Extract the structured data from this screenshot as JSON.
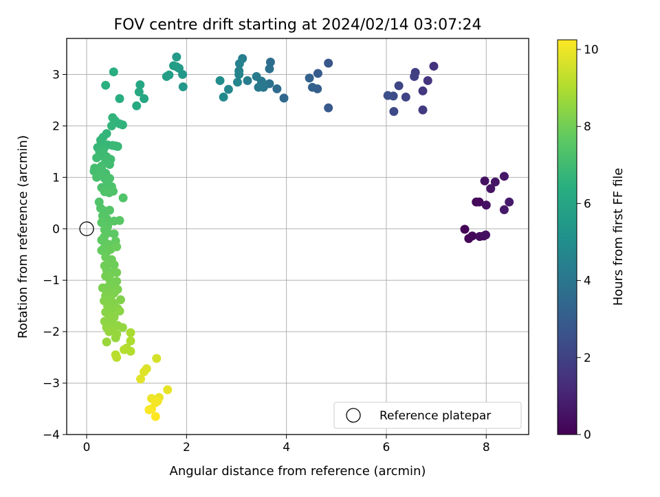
{
  "chart_data": {
    "type": "scatter",
    "title": "FOV centre drift starting at 2024/02/14 03:07:24",
    "xlabel": "Angular distance from reference (arcmin)",
    "ylabel": "Rotation from reference (arcmin)",
    "xlim": [
      -0.4,
      8.85
    ],
    "ylim": [
      -4.0,
      3.7
    ],
    "xticks": [
      0,
      2,
      4,
      6,
      8
    ],
    "yticks": [
      -4,
      -3,
      -2,
      -1,
      0,
      1,
      2,
      3
    ],
    "grid": true,
    "colormap": "viridis",
    "colorbar": {
      "label": "Hours from first FF file",
      "min": 0,
      "max": 10.25,
      "ticks": [
        0,
        2,
        4,
        6,
        8,
        10
      ]
    },
    "legend": {
      "position": "lower-right",
      "entries": [
        "Reference platepar"
      ]
    },
    "reference_point": {
      "x": 0,
      "y": 0
    },
    "points": [
      {
        "x": 7.57,
        "y": -0.01,
        "t": 0.05
      },
      {
        "x": 7.65,
        "y": -0.19,
        "t": 0.1
      },
      {
        "x": 7.72,
        "y": -0.14,
        "t": 0.15
      },
      {
        "x": 7.8,
        "y": 0.52,
        "t": 0.2
      },
      {
        "x": 7.86,
        "y": 0.52,
        "t": 0.25
      },
      {
        "x": 7.87,
        "y": -0.15,
        "t": 0.3
      },
      {
        "x": 7.95,
        "y": -0.14,
        "t": 0.35
      },
      {
        "x": 7.99,
        "y": -0.12,
        "t": 0.4
      },
      {
        "x": 8.0,
        "y": 0.46,
        "t": 0.45
      },
      {
        "x": 7.97,
        "y": 0.93,
        "t": 0.5
      },
      {
        "x": 8.09,
        "y": 0.78,
        "t": 0.55
      },
      {
        "x": 8.18,
        "y": 0.91,
        "t": 0.6
      },
      {
        "x": 8.36,
        "y": 1.02,
        "t": 0.65
      },
      {
        "x": 8.36,
        "y": 0.37,
        "t": 0.7
      },
      {
        "x": 8.46,
        "y": 0.52,
        "t": 0.75
      },
      {
        "x": 6.95,
        "y": 3.16,
        "t": 1.45
      },
      {
        "x": 6.83,
        "y": 2.88,
        "t": 1.55
      },
      {
        "x": 6.73,
        "y": 2.68,
        "t": 1.65
      },
      {
        "x": 6.73,
        "y": 2.31,
        "t": 1.75
      },
      {
        "x": 6.58,
        "y": 3.04,
        "t": 1.85
      },
      {
        "x": 6.56,
        "y": 2.96,
        "t": 1.95
      },
      {
        "x": 6.39,
        "y": 2.56,
        "t": 2.05
      },
      {
        "x": 6.25,
        "y": 2.78,
        "t": 2.15
      },
      {
        "x": 6.15,
        "y": 2.28,
        "t": 2.25
      },
      {
        "x": 6.14,
        "y": 2.58,
        "t": 2.35
      },
      {
        "x": 6.03,
        "y": 2.59,
        "t": 2.45
      },
      {
        "x": 4.84,
        "y": 3.22,
        "t": 2.75
      },
      {
        "x": 4.84,
        "y": 2.35,
        "t": 2.85
      },
      {
        "x": 4.63,
        "y": 3.02,
        "t": 2.95
      },
      {
        "x": 4.62,
        "y": 2.72,
        "t": 3.05
      },
      {
        "x": 4.52,
        "y": 2.75,
        "t": 3.15
      },
      {
        "x": 4.46,
        "y": 2.93,
        "t": 3.25
      },
      {
        "x": 3.95,
        "y": 2.54,
        "t": 3.45
      },
      {
        "x": 3.81,
        "y": 2.72,
        "t": 3.55
      },
      {
        "x": 3.68,
        "y": 3.24,
        "t": 3.65
      },
      {
        "x": 3.66,
        "y": 3.11,
        "t": 3.75
      },
      {
        "x": 3.66,
        "y": 2.82,
        "t": 3.85
      },
      {
        "x": 3.55,
        "y": 2.81,
        "t": 3.95
      },
      {
        "x": 3.54,
        "y": 2.75,
        "t": 4.05
      },
      {
        "x": 3.5,
        "y": 2.87,
        "t": 4.1
      },
      {
        "x": 3.44,
        "y": 2.75,
        "t": 4.15
      },
      {
        "x": 3.4,
        "y": 2.96,
        "t": 4.2
      },
      {
        "x": 3.22,
        "y": 2.88,
        "t": 4.3
      },
      {
        "x": 3.12,
        "y": 3.31,
        "t": 4.4
      },
      {
        "x": 3.06,
        "y": 3.21,
        "t": 4.5
      },
      {
        "x": 3.05,
        "y": 3.07,
        "t": 4.55
      },
      {
        "x": 3.05,
        "y": 3.0,
        "t": 4.6
      },
      {
        "x": 3.02,
        "y": 2.85,
        "t": 4.65
      },
      {
        "x": 2.84,
        "y": 2.71,
        "t": 4.75
      },
      {
        "x": 2.74,
        "y": 2.56,
        "t": 4.85
      },
      {
        "x": 2.67,
        "y": 2.88,
        "t": 4.95
      },
      {
        "x": 1.92,
        "y": 3.0,
        "t": 5.4
      },
      {
        "x": 1.93,
        "y": 2.76,
        "t": 5.45
      },
      {
        "x": 1.85,
        "y": 3.12,
        "t": 5.5
      },
      {
        "x": 1.8,
        "y": 3.34,
        "t": 5.55
      },
      {
        "x": 1.8,
        "y": 3.15,
        "t": 5.6
      },
      {
        "x": 1.74,
        "y": 3.17,
        "t": 5.65
      },
      {
        "x": 1.65,
        "y": 2.99,
        "t": 5.7
      },
      {
        "x": 1.6,
        "y": 2.96,
        "t": 5.75
      },
      {
        "x": 1.15,
        "y": 2.53,
        "t": 6.05
      },
      {
        "x": 1.07,
        "y": 2.8,
        "t": 6.1
      },
      {
        "x": 1.05,
        "y": 2.66,
        "t": 6.15
      },
      {
        "x": 1.0,
        "y": 2.39,
        "t": 6.2
      },
      {
        "x": 0.66,
        "y": 2.53,
        "t": 6.35
      },
      {
        "x": 0.54,
        "y": 3.05,
        "t": 6.4
      },
      {
        "x": 0.38,
        "y": 2.79,
        "t": 6.45
      },
      {
        "x": 0.72,
        "y": 2.02,
        "t": 6.6
      },
      {
        "x": 0.66,
        "y": 2.04,
        "t": 6.62
      },
      {
        "x": 0.57,
        "y": 2.1,
        "t": 6.64
      },
      {
        "x": 0.52,
        "y": 2.16,
        "t": 6.66
      },
      {
        "x": 0.5,
        "y": 2.0,
        "t": 6.68
      },
      {
        "x": 0.4,
        "y": 1.85,
        "t": 6.7
      },
      {
        "x": 0.33,
        "y": 1.78,
        "t": 6.72
      },
      {
        "x": 0.28,
        "y": 1.72,
        "t": 6.74
      },
      {
        "x": 0.22,
        "y": 1.58,
        "t": 6.76
      },
      {
        "x": 0.3,
        "y": 1.65,
        "t": 6.78
      },
      {
        "x": 0.42,
        "y": 1.63,
        "t": 6.8
      },
      {
        "x": 0.52,
        "y": 1.62,
        "t": 6.82
      },
      {
        "x": 0.62,
        "y": 1.6,
        "t": 6.84
      },
      {
        "x": 0.58,
        "y": 1.61,
        "t": 6.86
      },
      {
        "x": 0.34,
        "y": 1.55,
        "t": 6.88
      },
      {
        "x": 0.26,
        "y": 1.5,
        "t": 6.9
      },
      {
        "x": 0.33,
        "y": 1.47,
        "t": 6.92
      },
      {
        "x": 0.28,
        "y": 1.42,
        "t": 6.94
      },
      {
        "x": 0.2,
        "y": 1.38,
        "t": 6.96
      },
      {
        "x": 0.4,
        "y": 1.4,
        "t": 6.98
      },
      {
        "x": 0.48,
        "y": 1.35,
        "t": 7.0
      },
      {
        "x": 0.46,
        "y": 1.25,
        "t": 7.02
      },
      {
        "x": 0.38,
        "y": 1.3,
        "t": 7.04
      },
      {
        "x": 0.3,
        "y": 1.22,
        "t": 7.06
      },
      {
        "x": 0.16,
        "y": 1.18,
        "t": 7.08
      },
      {
        "x": 0.15,
        "y": 1.12,
        "t": 7.1
      },
      {
        "x": 0.22,
        "y": 1.1,
        "t": 7.12
      },
      {
        "x": 0.3,
        "y": 1.15,
        "t": 7.14
      },
      {
        "x": 0.38,
        "y": 1.08,
        "t": 7.16
      },
      {
        "x": 0.36,
        "y": 0.98,
        "t": 7.18
      },
      {
        "x": 0.28,
        "y": 1.05,
        "t": 7.2
      },
      {
        "x": 0.2,
        "y": 1.0,
        "t": 7.22
      },
      {
        "x": 0.46,
        "y": 0.98,
        "t": 7.24
      },
      {
        "x": 0.4,
        "y": 0.85,
        "t": 7.26
      },
      {
        "x": 0.3,
        "y": 0.8,
        "t": 7.28
      },
      {
        "x": 0.5,
        "y": 0.82,
        "t": 7.3
      },
      {
        "x": 0.45,
        "y": 0.7,
        "t": 7.32
      },
      {
        "x": 0.36,
        "y": 0.72,
        "t": 7.34
      },
      {
        "x": 0.53,
        "y": 0.73,
        "t": 7.36
      },
      {
        "x": 0.73,
        "y": 0.6,
        "t": 7.38
      },
      {
        "x": 0.25,
        "y": 0.52,
        "t": 7.4
      },
      {
        "x": 0.28,
        "y": 0.4,
        "t": 7.42
      },
      {
        "x": 0.35,
        "y": 0.35,
        "t": 7.44
      },
      {
        "x": 0.46,
        "y": 0.36,
        "t": 7.46
      },
      {
        "x": 0.32,
        "y": 0.25,
        "t": 7.48
      },
      {
        "x": 0.4,
        "y": 0.2,
        "t": 7.5
      },
      {
        "x": 0.38,
        "y": 0.15,
        "t": 7.52
      },
      {
        "x": 0.55,
        "y": 0.15,
        "t": 7.54
      },
      {
        "x": 0.66,
        "y": 0.16,
        "t": 7.56
      },
      {
        "x": 0.3,
        "y": 0.12,
        "t": 7.58
      },
      {
        "x": 0.42,
        "y": 0.05,
        "t": 7.6
      },
      {
        "x": 0.36,
        "y": -0.02,
        "t": 7.62
      },
      {
        "x": 0.43,
        "y": -0.08,
        "t": 7.64
      },
      {
        "x": 0.55,
        "y": -0.1,
        "t": 7.66
      },
      {
        "x": 0.35,
        "y": -0.16,
        "t": 7.68
      },
      {
        "x": 0.3,
        "y": -0.22,
        "t": 7.7
      },
      {
        "x": 0.38,
        "y": -0.28,
        "t": 7.72
      },
      {
        "x": 0.58,
        "y": -0.24,
        "t": 7.74
      },
      {
        "x": 0.43,
        "y": -0.3,
        "t": 7.76
      },
      {
        "x": 0.36,
        "y": -0.36,
        "t": 7.78
      },
      {
        "x": 0.3,
        "y": -0.42,
        "t": 7.8
      },
      {
        "x": 0.4,
        "y": -0.45,
        "t": 7.82
      },
      {
        "x": 0.48,
        "y": -0.4,
        "t": 7.84
      },
      {
        "x": 0.6,
        "y": -0.35,
        "t": 7.86
      },
      {
        "x": 0.38,
        "y": -0.55,
        "t": 7.88
      },
      {
        "x": 0.5,
        "y": -0.6,
        "t": 7.9
      },
      {
        "x": 0.45,
        "y": -0.68,
        "t": 7.92
      },
      {
        "x": 0.55,
        "y": -0.7,
        "t": 7.94
      },
      {
        "x": 0.36,
        "y": -0.72,
        "t": 7.96
      },
      {
        "x": 0.4,
        "y": -0.8,
        "t": 7.98
      },
      {
        "x": 0.52,
        "y": -0.85,
        "t": 8.0
      },
      {
        "x": 0.6,
        "y": -0.85,
        "t": 8.02
      },
      {
        "x": 0.38,
        "y": -0.92,
        "t": 8.04
      },
      {
        "x": 0.46,
        "y": -0.98,
        "t": 8.06
      },
      {
        "x": 0.6,
        "y": -1.02,
        "t": 8.08
      },
      {
        "x": 0.52,
        "y": -1.1,
        "t": 8.1
      },
      {
        "x": 0.44,
        "y": -1.12,
        "t": 8.12
      },
      {
        "x": 0.32,
        "y": -1.15,
        "t": 8.14
      },
      {
        "x": 0.4,
        "y": -1.2,
        "t": 8.16
      },
      {
        "x": 0.62,
        "y": -1.18,
        "t": 8.18
      },
      {
        "x": 0.55,
        "y": -1.25,
        "t": 8.2
      },
      {
        "x": 0.38,
        "y": -1.3,
        "t": 8.22
      },
      {
        "x": 0.48,
        "y": -1.35,
        "t": 8.24
      },
      {
        "x": 0.68,
        "y": -1.38,
        "t": 8.26
      },
      {
        "x": 0.35,
        "y": -1.4,
        "t": 8.28
      },
      {
        "x": 0.55,
        "y": -1.45,
        "t": 8.3
      },
      {
        "x": 0.42,
        "y": -1.5,
        "t": 8.32
      },
      {
        "x": 0.62,
        "y": -1.55,
        "t": 8.34
      },
      {
        "x": 0.5,
        "y": -1.58,
        "t": 8.36
      },
      {
        "x": 0.38,
        "y": -1.62,
        "t": 8.38
      },
      {
        "x": 0.66,
        "y": -1.6,
        "t": 8.4
      },
      {
        "x": 0.45,
        "y": -1.7,
        "t": 8.42
      },
      {
        "x": 0.55,
        "y": -1.72,
        "t": 8.44
      },
      {
        "x": 0.36,
        "y": -1.8,
        "t": 8.46
      },
      {
        "x": 0.5,
        "y": -1.85,
        "t": 8.48
      },
      {
        "x": 0.62,
        "y": -1.88,
        "t": 8.5
      },
      {
        "x": 0.4,
        "y": -1.92,
        "t": 8.52
      },
      {
        "x": 0.72,
        "y": -1.92,
        "t": 8.54
      },
      {
        "x": 0.52,
        "y": -1.98,
        "t": 8.56
      },
      {
        "x": 0.45,
        "y": -2.0,
        "t": 8.58
      },
      {
        "x": 0.6,
        "y": -2.05,
        "t": 8.6
      },
      {
        "x": 0.58,
        "y": -2.12,
        "t": 8.62
      },
      {
        "x": 0.4,
        "y": -2.2,
        "t": 8.64
      },
      {
        "x": 0.88,
        "y": -2.02,
        "t": 8.9
      },
      {
        "x": 0.88,
        "y": -2.18,
        "t": 8.95
      },
      {
        "x": 0.8,
        "y": -2.32,
        "t": 9.0
      },
      {
        "x": 0.88,
        "y": -2.38,
        "t": 9.05
      },
      {
        "x": 0.75,
        "y": -2.35,
        "t": 9.1
      },
      {
        "x": 0.58,
        "y": -2.45,
        "t": 9.15
      },
      {
        "x": 0.6,
        "y": -2.5,
        "t": 9.2
      },
      {
        "x": 1.4,
        "y": -2.52,
        "t": 9.6
      },
      {
        "x": 1.2,
        "y": -2.72,
        "t": 9.7
      },
      {
        "x": 1.15,
        "y": -2.78,
        "t": 9.75
      },
      {
        "x": 1.08,
        "y": -2.92,
        "t": 9.8
      },
      {
        "x": 1.62,
        "y": -3.13,
        "t": 9.9
      },
      {
        "x": 1.45,
        "y": -3.28,
        "t": 9.95
      },
      {
        "x": 1.3,
        "y": -3.3,
        "t": 10.0
      },
      {
        "x": 1.42,
        "y": -3.35,
        "t": 10.05
      },
      {
        "x": 1.38,
        "y": -3.38,
        "t": 10.1
      },
      {
        "x": 1.3,
        "y": -3.5,
        "t": 10.15
      },
      {
        "x": 1.25,
        "y": -3.52,
        "t": 10.2
      },
      {
        "x": 1.38,
        "y": -3.65,
        "t": 10.25
      }
    ]
  }
}
